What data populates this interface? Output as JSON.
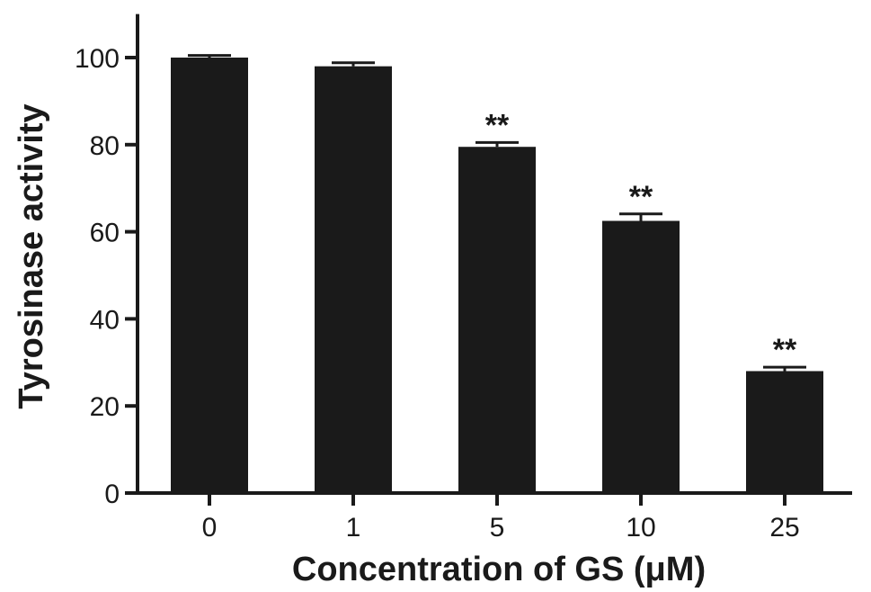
{
  "chart_data": {
    "type": "bar",
    "categories": [
      "0",
      "1",
      "5",
      "10",
      "25"
    ],
    "values": [
      100,
      98,
      79.5,
      62.5,
      28
    ],
    "errors": [
      0.5,
      0.8,
      1.0,
      1.6,
      0.9
    ],
    "annotations": [
      "",
      "",
      "**",
      "**",
      "**"
    ],
    "xlabel": "Concentration of GS (μM)",
    "ylabel": "Tyrosinase activity",
    "ylim": [
      0,
      110
    ],
    "yticks": [
      0,
      20,
      40,
      60,
      80,
      100
    ],
    "grid": false,
    "bar_color": "#1a1a1a"
  }
}
